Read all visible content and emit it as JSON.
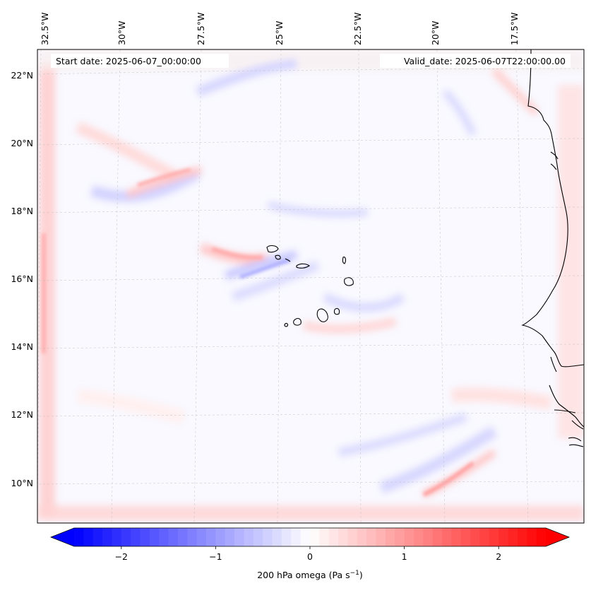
{
  "figure": {
    "start_date_text": "Start date: 2025-06-07_00:00:00",
    "valid_date_text": "Valid_date: 2025-06-07T22:00:00.00"
  },
  "map": {
    "longitude_labels": [
      "32.5°W",
      "30°W",
      "27.5°W",
      "25°W",
      "22.5°W",
      "20°W",
      "17.5°W"
    ],
    "latitude_labels": [
      "22°N",
      "20°N",
      "18°N",
      "16°N",
      "14°N",
      "12°N",
      "10°N"
    ],
    "gridlines": true,
    "coastline_color": "#000000"
  },
  "colorbar": {
    "label": "200 hPa omega (Pa s",
    "label_superscript": "−1",
    "label_close": ")",
    "ticks": [
      {
        "value": -2,
        "label": "−2"
      },
      {
        "value": -1,
        "label": "−1"
      },
      {
        "value": 0,
        "label": "0"
      },
      {
        "value": 1,
        "label": "1"
      },
      {
        "value": 2,
        "label": "2"
      }
    ],
    "vmin": -2.5,
    "vmax": 2.5,
    "levels": 50,
    "extend": "both",
    "colormap": "bwr",
    "min_color": "#0000ff",
    "mid_color": "#ffffff",
    "max_color": "#ff0000"
  }
}
